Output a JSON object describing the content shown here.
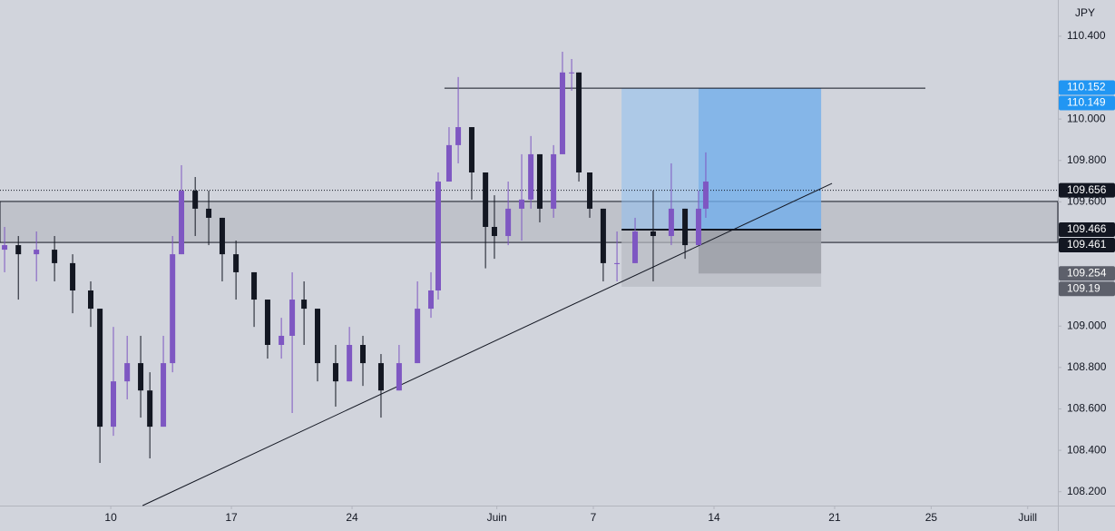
{
  "chart_data": {
    "type": "candlestick",
    "currency": "JPY",
    "x": [
      -4.4,
      -3.83,
      -3.08,
      -2.33,
      -1.58,
      -0.83,
      -0.45,
      0.11,
      0.68,
      1.24,
      1.62,
      2.18,
      2.56,
      2.93,
      3.5,
      4.06,
      4.62,
      5.19,
      5.94,
      6.5,
      7.07,
      7.52,
      8.01,
      8.57,
      9.32,
      9.89,
      10.45,
      11.2,
      11.95,
      12.71,
      13.27,
      13.57,
      14.02,
      14.4,
      14.96,
      15.53,
      15.9,
      16.47,
      17.03,
      17.41,
      17.78,
      18.35,
      18.72,
      19.1,
      19.4,
      19.85,
      20.41,
      20.98,
      21.73,
      22.48,
      23.23,
      23.8,
      24.36,
      24.66
    ],
    "open": [
      109.369,
      109.391,
      109.347,
      109.369,
      109.304,
      109.172,
      109.084,
      108.514,
      108.733,
      108.821,
      108.689,
      108.514,
      108.821,
      109.347,
      109.654,
      109.567,
      109.523,
      109.347,
      109.26,
      109.128,
      108.909,
      108.953,
      109.128,
      109.084,
      108.821,
      108.733,
      108.909,
      108.821,
      108.689,
      108.821,
      109.084,
      109.172,
      109.698,
      109.874,
      109.961,
      109.742,
      109.479,
      109.435,
      109.567,
      109.611,
      109.83,
      109.567,
      109.83,
      110.225,
      110.225,
      109.742,
      109.567,
      109.304,
      109.304,
      109.457,
      109.435,
      109.567,
      109.391,
      109.567
    ],
    "high": [
      109.479,
      109.435,
      109.457,
      109.435,
      109.347,
      109.216,
      109.084,
      108.996,
      108.953,
      108.953,
      108.777,
      108.953,
      109.435,
      109.777,
      109.72,
      109.654,
      109.523,
      109.413,
      109.26,
      109.128,
      109.04,
      109.26,
      109.216,
      109.084,
      108.909,
      108.996,
      108.953,
      108.865,
      108.909,
      109.216,
      109.26,
      109.742,
      109.961,
      110.203,
      109.961,
      109.742,
      109.632,
      109.698,
      109.83,
      109.918,
      109.83,
      109.874,
      110.325,
      110.29,
      110.225,
      109.742,
      109.567,
      109.457,
      109.523,
      109.654,
      109.786,
      109.567,
      109.654,
      109.839
    ],
    "low": [
      109.26,
      109.128,
      109.216,
      109.216,
      109.062,
      108.996,
      108.339,
      108.47,
      108.646,
      108.558,
      108.361,
      108.514,
      108.777,
      109.347,
      109.435,
      109.391,
      109.216,
      109.128,
      108.996,
      108.843,
      108.843,
      108.58,
      108.909,
      108.733,
      108.611,
      108.733,
      108.711,
      108.558,
      108.689,
      108.821,
      109.04,
      109.128,
      109.698,
      109.786,
      109.611,
      109.279,
      109.325,
      109.391,
      109.413,
      109.567,
      109.501,
      109.523,
      109.83,
      110.137,
      109.698,
      109.523,
      109.216,
      109.216,
      109.304,
      109.216,
      109.391,
      109.325,
      109.391,
      109.523
    ],
    "close": [
      109.391,
      109.347,
      109.369,
      109.304,
      109.172,
      109.084,
      108.514,
      108.733,
      108.821,
      108.689,
      108.514,
      108.821,
      109.347,
      109.654,
      109.567,
      109.523,
      109.347,
      109.26,
      109.128,
      108.909,
      108.953,
      109.128,
      109.084,
      108.821,
      108.733,
      108.909,
      108.821,
      108.689,
      108.821,
      109.084,
      109.172,
      109.698,
      109.874,
      109.961,
      109.742,
      109.479,
      109.435,
      109.567,
      109.611,
      109.83,
      109.567,
      109.83,
      110.225,
      110.225,
      109.742,
      109.567,
      109.304,
      109.304,
      109.457,
      109.435,
      109.567,
      109.391,
      109.567,
      109.698
    ],
    "up_color": "#7e57c2",
    "down_color": "#131722",
    "xlim": [
      -4.59,
      39.25
    ],
    "xticks": [
      {
        "value": 0,
        "label": "10"
      },
      {
        "value": 5,
        "label": "17"
      },
      {
        "value": 10,
        "label": "24"
      },
      {
        "value": 16,
        "label": "Juin"
      },
      {
        "value": 20,
        "label": "7"
      },
      {
        "value": 25,
        "label": "14"
      },
      {
        "value": 30,
        "label": "21"
      },
      {
        "value": 34,
        "label": "25"
      },
      {
        "value": 38,
        "label": "Juill"
      }
    ],
    "ylim": [
      108.133,
      110.575
    ],
    "yticks": [
      {
        "value": 110.4,
        "label": "110.400"
      },
      {
        "value": 110.0,
        "label": "110.000"
      },
      {
        "value": 109.8,
        "label": "109.800"
      },
      {
        "value": 109.6,
        "label": "109.600"
      },
      {
        "value": 109.0,
        "label": "109.000"
      },
      {
        "value": 108.8,
        "label": "108.800"
      },
      {
        "value": 108.6,
        "label": "108.600"
      },
      {
        "value": 108.4,
        "label": "108.400"
      },
      {
        "value": 108.2,
        "label": "108.200"
      }
    ],
    "price_labels": [
      {
        "value": 110.152,
        "color": "#2196f3"
      },
      {
        "value": 110.149,
        "color": "#2196f3"
      },
      {
        "value": 109.656,
        "color": "#131722"
      },
      {
        "value": 109.466,
        "color": "#131722"
      },
      {
        "value": 109.461,
        "color": "#131722"
      },
      {
        "value": 109.254,
        "color": "#5d606b"
      },
      {
        "value": 109.19,
        "color": "#5d606b"
      }
    ],
    "zone": [
      109.404,
      109.602
    ],
    "horizontal_line": {
      "x": [
        13.83,
        33.76
      ],
      "value": 110.149
    },
    "trendline": {
      "x": [
        1.32,
        29.89
      ],
      "y": [
        108.133,
        109.689
      ]
    },
    "position": {
      "x": [
        21.17,
        24.36,
        29.44
      ],
      "entry": 109.466,
      "target": 110.149,
      "stop": 109.19,
      "partial_stop": 109.254
    }
  }
}
